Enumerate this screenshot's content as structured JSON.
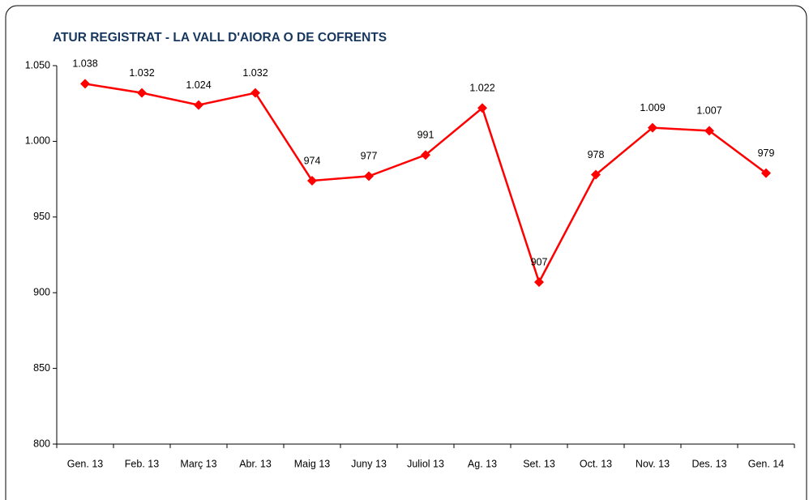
{
  "chart_data": {
    "type": "line",
    "title": "ATUR REGISTRAT - LA VALL D'AIORA O DE COFRENTS",
    "categories": [
      "Gen. 13",
      "Feb. 13",
      "Març 13",
      "Abr. 13",
      "Maig 13",
      "Juny 13",
      "Juliol 13",
      "Ag. 13",
      "Set. 13",
      "Oct. 13",
      "Nov. 13",
      "Des. 13",
      "Gen. 14"
    ],
    "series": [
      {
        "color": "#ff0000",
        "values": [
          1038,
          1032,
          1024,
          1032,
          974,
          977,
          991,
          1022,
          907,
          978,
          1009,
          1007,
          979
        ],
        "value_labels": [
          "1.038",
          "1.032",
          "1.024",
          "1.032",
          "974",
          "977",
          "991",
          "1.022",
          "907",
          "978",
          "1.009",
          "1.007",
          "979"
        ]
      }
    ],
    "ylim": [
      800,
      1050
    ],
    "yticks": [
      800,
      850,
      900,
      950,
      {
        "value": 1000,
        "label": "1.000"
      },
      {
        "value": 1050,
        "label": "1.050"
      }
    ],
    "grid": false
  }
}
